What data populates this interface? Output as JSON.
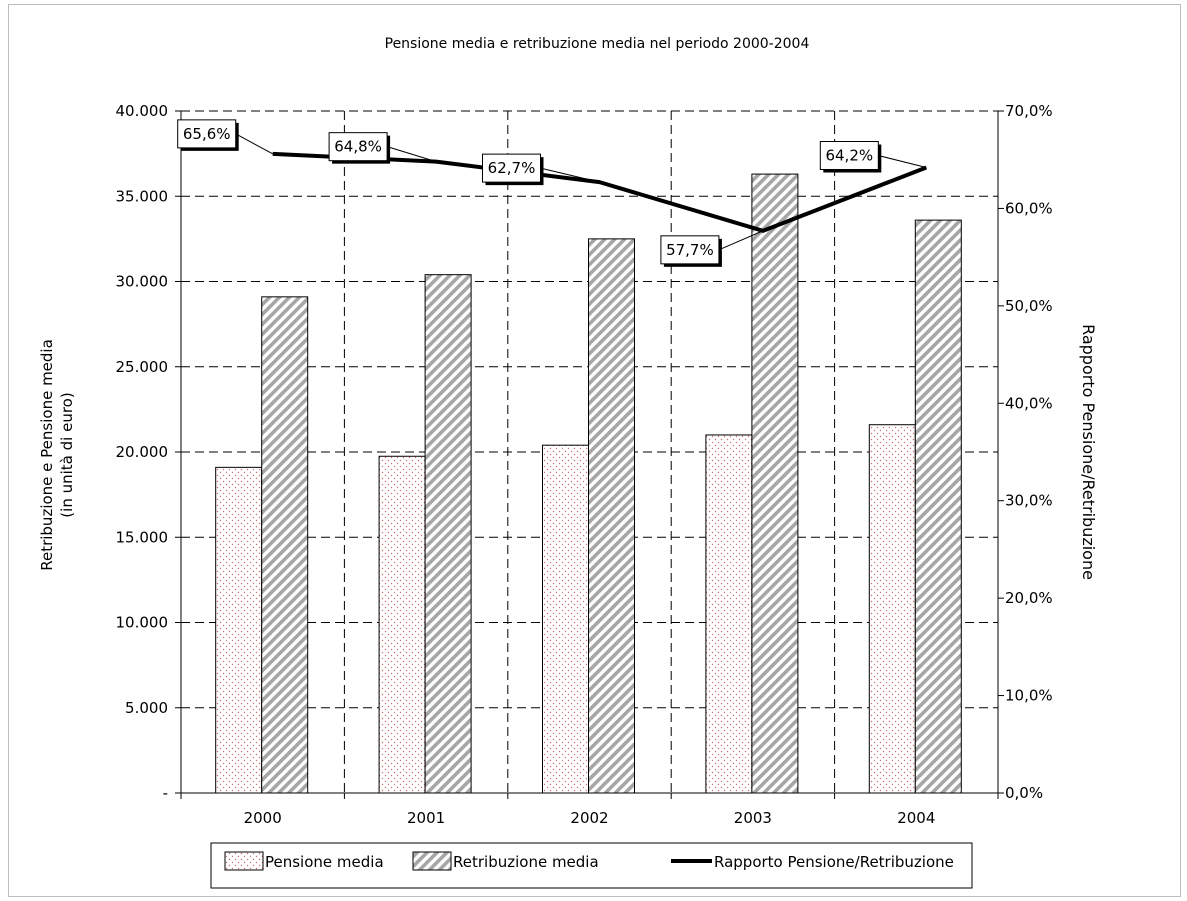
{
  "chart_data": {
    "type": "bar",
    "title": "Pensione media e retribuzione media nel periodo 2000-2004",
    "categories": [
      "2000",
      "2001",
      "2002",
      "2003",
      "2004"
    ],
    "series": [
      {
        "name": "Pensione media",
        "type": "bar",
        "axis": "left",
        "pattern": "dots",
        "color": "#e08080",
        "values": [
          19100,
          19750,
          20400,
          21000,
          21600
        ]
      },
      {
        "name": "Retribuzione media",
        "type": "bar",
        "axis": "left",
        "pattern": "diagonal-hatch",
        "color": "#a6a6a6",
        "values": [
          29100,
          30400,
          32500,
          36300,
          33600
        ]
      },
      {
        "name": "Rapporto Pensione/Retribuzione",
        "type": "line",
        "axis": "right",
        "color": "#000000",
        "values": [
          65.6,
          64.8,
          62.7,
          57.7,
          64.2
        ],
        "labels": [
          "65,6%",
          "64,8%",
          "62,7%",
          "57,7%",
          "64,2%"
        ]
      }
    ],
    "ylabel": "Retribuzione e Pensione media",
    "ylabel2": "(in unità di euro)",
    "ylim": [
      0,
      40000
    ],
    "yticks": [
      "-",
      "5.000",
      "10.000",
      "15.000",
      "20.000",
      "25.000",
      "30.000",
      "35.000",
      "40.000"
    ],
    "y2label": "Rapporto Pensione/Retribuzione",
    "y2lim": [
      0,
      70
    ],
    "y2ticks": [
      "0,0%",
      "10,0%",
      "20,0%",
      "30,0%",
      "40,0%",
      "50,0%",
      "60,0%",
      "70,0%"
    ],
    "grid": true,
    "legend_position": "bottom"
  }
}
